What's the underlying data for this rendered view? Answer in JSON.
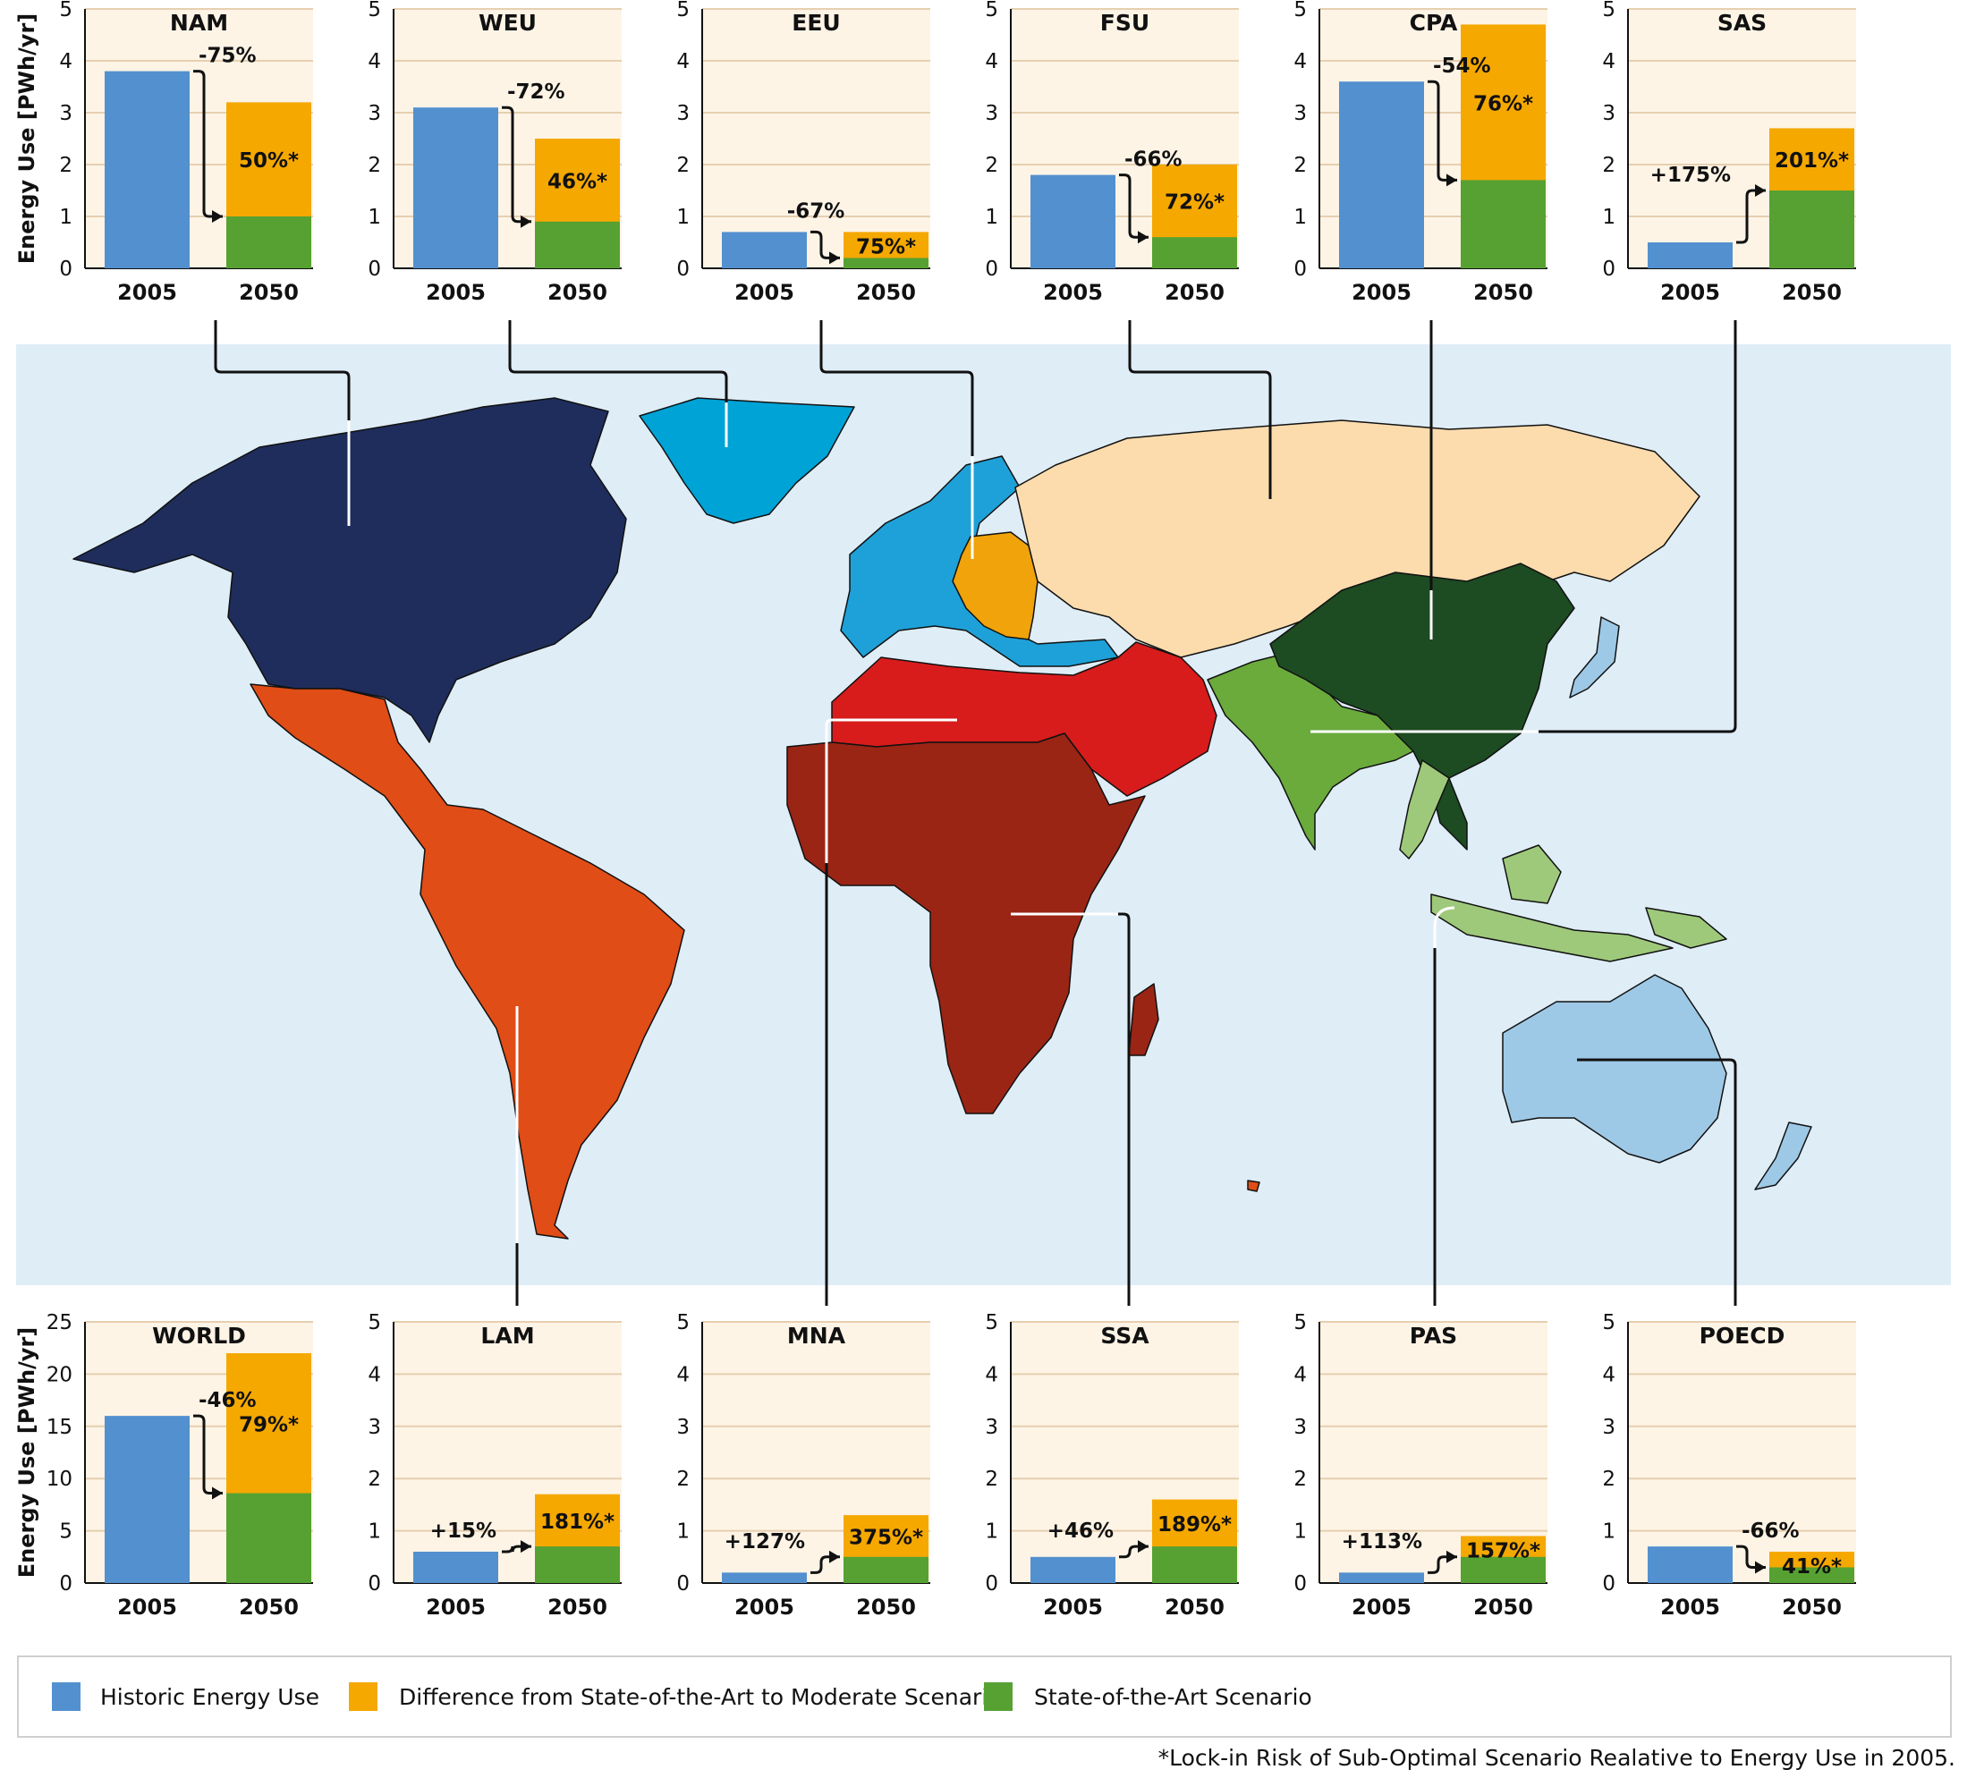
{
  "chart_data": [
    {
      "type": "bar",
      "title": "NAM",
      "ylabel": "Energy Use [PWh/yr]",
      "ylim": [
        0,
        5
      ],
      "yticks": [
        0,
        1,
        2,
        3,
        4,
        5
      ],
      "categories": [
        "2005",
        "2050"
      ],
      "historic_2005": 3.8,
      "state_of_the_art_2050": 1.0,
      "moderate_2050": 3.2,
      "change_label": "-75%",
      "lockin_label": "50%*"
    },
    {
      "type": "bar",
      "title": "WEU",
      "ylim": [
        0,
        5
      ],
      "yticks": [
        0,
        1,
        2,
        3,
        4,
        5
      ],
      "categories": [
        "2005",
        "2050"
      ],
      "historic_2005": 3.1,
      "state_of_the_art_2050": 0.9,
      "moderate_2050": 2.5,
      "change_label": "-72%",
      "lockin_label": "46%*"
    },
    {
      "type": "bar",
      "title": "EEU",
      "ylim": [
        0,
        5
      ],
      "yticks": [
        0,
        1,
        2,
        3,
        4,
        5
      ],
      "categories": [
        "2005",
        "2050"
      ],
      "historic_2005": 0.7,
      "state_of_the_art_2050": 0.2,
      "moderate_2050": 0.7,
      "change_label": "-67%",
      "lockin_label": "75%*"
    },
    {
      "type": "bar",
      "title": "FSU",
      "ylim": [
        0,
        5
      ],
      "yticks": [
        0,
        1,
        2,
        3,
        4,
        5
      ],
      "categories": [
        "2005",
        "2050"
      ],
      "historic_2005": 1.8,
      "state_of_the_art_2050": 0.6,
      "moderate_2050": 2.0,
      "change_label": "-66%",
      "lockin_label": "72%*"
    },
    {
      "type": "bar",
      "title": "CPA",
      "ylim": [
        0,
        5
      ],
      "yticks": [
        0,
        1,
        2,
        3,
        4,
        5
      ],
      "categories": [
        "2005",
        "2050"
      ],
      "historic_2005": 3.6,
      "state_of_the_art_2050": 1.7,
      "moderate_2050": 4.7,
      "change_label": "-54%",
      "lockin_label": "76%*"
    },
    {
      "type": "bar",
      "title": "SAS",
      "ylim": [
        0,
        5
      ],
      "yticks": [
        0,
        1,
        2,
        3,
        4,
        5
      ],
      "categories": [
        "2005",
        "2050"
      ],
      "historic_2005": 0.5,
      "state_of_the_art_2050": 1.5,
      "moderate_2050": 2.7,
      "change_label": "+175%",
      "lockin_label": "201%*"
    },
    {
      "type": "bar",
      "title": "WORLD",
      "ylabel": "Energy Use [PWh/yr]",
      "ylim": [
        0,
        25
      ],
      "yticks": [
        0,
        5,
        10,
        15,
        20,
        25
      ],
      "categories": [
        "2005",
        "2050"
      ],
      "historic_2005": 16,
      "state_of_the_art_2050": 8.6,
      "moderate_2050": 22,
      "change_label": "-46%",
      "lockin_label": "79%*"
    },
    {
      "type": "bar",
      "title": "LAM",
      "ylim": [
        0,
        5
      ],
      "yticks": [
        0,
        1,
        2,
        3,
        4,
        5
      ],
      "categories": [
        "2005",
        "2050"
      ],
      "historic_2005": 0.6,
      "state_of_the_art_2050": 0.7,
      "moderate_2050": 1.7,
      "change_label": "+15%",
      "lockin_label": "181%*"
    },
    {
      "type": "bar",
      "title": "MNA",
      "ylim": [
        0,
        5
      ],
      "yticks": [
        0,
        1,
        2,
        3,
        4,
        5
      ],
      "categories": [
        "2005",
        "2050"
      ],
      "historic_2005": 0.2,
      "state_of_the_art_2050": 0.5,
      "moderate_2050": 1.3,
      "change_label": "+127%",
      "lockin_label": "375%*"
    },
    {
      "type": "bar",
      "title": "SSA",
      "ylim": [
        0,
        5
      ],
      "yticks": [
        0,
        1,
        2,
        3,
        4,
        5
      ],
      "categories": [
        "2005",
        "2050"
      ],
      "historic_2005": 0.5,
      "state_of_the_art_2050": 0.7,
      "moderate_2050": 1.6,
      "change_label": "+46%",
      "lockin_label": "189%*"
    },
    {
      "type": "bar",
      "title": "PAS",
      "ylim": [
        0,
        5
      ],
      "yticks": [
        0,
        1,
        2,
        3,
        4,
        5
      ],
      "categories": [
        "2005",
        "2050"
      ],
      "historic_2005": 0.2,
      "state_of_the_art_2050": 0.5,
      "moderate_2050": 0.9,
      "change_label": "+113%",
      "lockin_label": "157%*"
    },
    {
      "type": "bar",
      "title": "POECD",
      "ylim": [
        0,
        5
      ],
      "yticks": [
        0,
        1,
        2,
        3,
        4,
        5
      ],
      "categories": [
        "2005",
        "2050"
      ],
      "historic_2005": 0.7,
      "state_of_the_art_2050": 0.3,
      "moderate_2050": 0.6,
      "change_label": "-66%",
      "lockin_label": "41%*"
    }
  ],
  "legend": [
    {
      "label": "Historic Energy Use",
      "color": "#5390cf"
    },
    {
      "label": "Difference from State-of-the-Art to Moderate Scenario",
      "color": "#f5a800"
    },
    {
      "label": "State-of-the-Art Scenario",
      "color": "#56a132"
    }
  ],
  "footnote": "*Lock-in Risk of Sub-Optimal Scenario Realative to Energy Use in 2005.",
  "colors": {
    "panel_bg": "#fdf4e6",
    "grid": "#e6cfb0",
    "map_bg": "#dfedf7",
    "historic": "#5390cf",
    "moderate": "#f5a800",
    "soa": "#56a132"
  }
}
